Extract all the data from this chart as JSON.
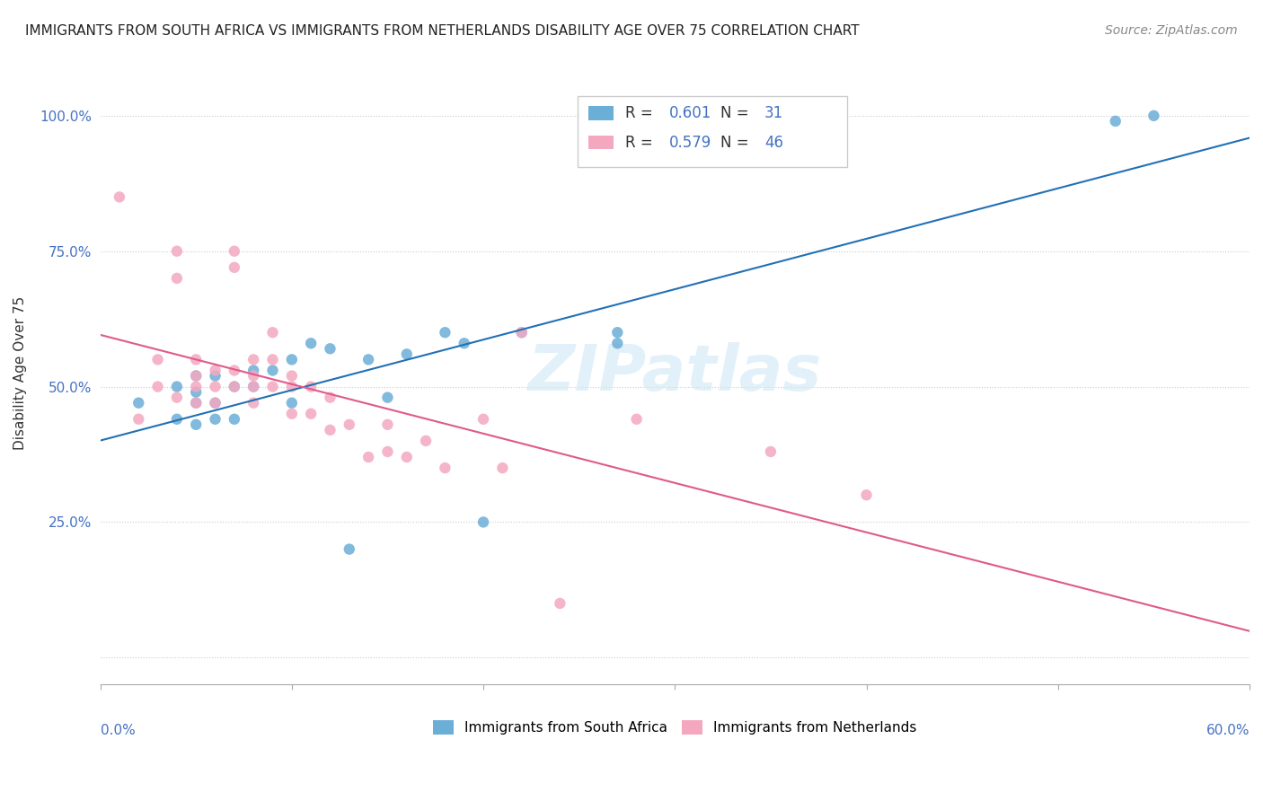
{
  "title": "IMMIGRANTS FROM SOUTH AFRICA VS IMMIGRANTS FROM NETHERLANDS DISABILITY AGE OVER 75 CORRELATION CHART",
  "source": "Source: ZipAtlas.com",
  "ylabel": "Disability Age Over 75",
  "ytick_values": [
    0.0,
    0.25,
    0.5,
    0.75,
    1.0
  ],
  "ytick_labels": [
    "",
    "25.0%",
    "50.0%",
    "75.0%",
    "100.0%"
  ],
  "xlim": [
    0.0,
    0.6
  ],
  "ylim": [
    -0.05,
    1.1
  ],
  "blue_R": 0.601,
  "blue_N": 31,
  "pink_R": 0.579,
  "pink_N": 46,
  "blue_color": "#6baed6",
  "pink_color": "#f4a8c0",
  "blue_line_color": "#2171b5",
  "pink_line_color": "#e05a8a",
  "text_color_blue": "#4472c4",
  "legend_label_blue": "Immigrants from South Africa",
  "legend_label_pink": "Immigrants from Netherlands",
  "watermark": "ZIPatlas",
  "background_color": "#ffffff",
  "blue_scatter_x": [
    0.02,
    0.04,
    0.04,
    0.05,
    0.05,
    0.05,
    0.05,
    0.06,
    0.06,
    0.06,
    0.07,
    0.07,
    0.08,
    0.08,
    0.09,
    0.1,
    0.1,
    0.11,
    0.12,
    0.13,
    0.14,
    0.15,
    0.16,
    0.18,
    0.19,
    0.2,
    0.22,
    0.27,
    0.27,
    0.53,
    0.55
  ],
  "blue_scatter_y": [
    0.47,
    0.44,
    0.5,
    0.43,
    0.47,
    0.49,
    0.52,
    0.44,
    0.47,
    0.52,
    0.44,
    0.5,
    0.5,
    0.53,
    0.53,
    0.47,
    0.55,
    0.58,
    0.57,
    0.2,
    0.55,
    0.48,
    0.56,
    0.6,
    0.58,
    0.25,
    0.6,
    0.6,
    0.58,
    0.99,
    1.0
  ],
  "pink_scatter_x": [
    0.01,
    0.02,
    0.03,
    0.03,
    0.04,
    0.04,
    0.04,
    0.05,
    0.05,
    0.05,
    0.05,
    0.06,
    0.06,
    0.06,
    0.07,
    0.07,
    0.07,
    0.07,
    0.08,
    0.08,
    0.08,
    0.08,
    0.09,
    0.09,
    0.09,
    0.1,
    0.1,
    0.1,
    0.11,
    0.11,
    0.12,
    0.12,
    0.13,
    0.14,
    0.15,
    0.15,
    0.16,
    0.17,
    0.18,
    0.2,
    0.21,
    0.22,
    0.24,
    0.28,
    0.35,
    0.4
  ],
  "pink_scatter_y": [
    0.85,
    0.44,
    0.5,
    0.55,
    0.7,
    0.75,
    0.48,
    0.52,
    0.55,
    0.47,
    0.5,
    0.5,
    0.47,
    0.53,
    0.53,
    0.75,
    0.72,
    0.5,
    0.5,
    0.52,
    0.55,
    0.47,
    0.6,
    0.55,
    0.5,
    0.52,
    0.5,
    0.45,
    0.5,
    0.45,
    0.48,
    0.42,
    0.43,
    0.37,
    0.38,
    0.43,
    0.37,
    0.4,
    0.35,
    0.44,
    0.35,
    0.6,
    0.1,
    0.44,
    0.38,
    0.3
  ]
}
